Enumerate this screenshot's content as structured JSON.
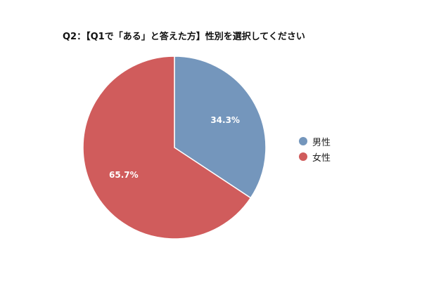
{
  "chart_data": {
    "type": "pie",
    "title": "Q2：【Q1で「ある」と答えた方】性別を選択してください",
    "categories": [
      "男性",
      "女性"
    ],
    "values": [
      34.3,
      65.7
    ],
    "value_labels": [
      "34.3%",
      "65.7%"
    ],
    "colors": [
      "#7496BC",
      "#D05C5C"
    ],
    "legend_position": "right",
    "start_angle": "top",
    "direction": "clockwise"
  }
}
